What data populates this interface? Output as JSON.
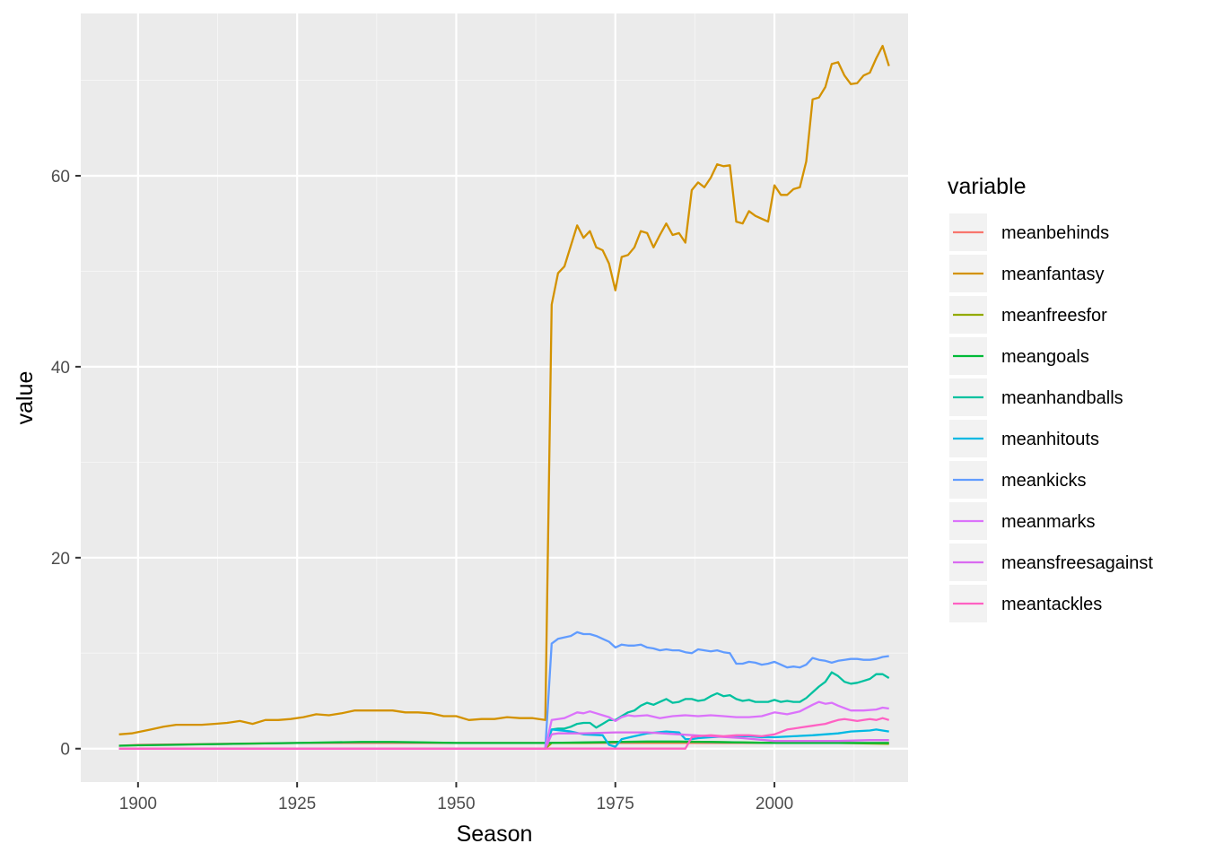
{
  "chart_data": {
    "type": "line",
    "xlabel": "Season",
    "ylabel": "value",
    "xlim": [
      1891,
      2021
    ],
    "ylim": [
      -3.5,
      77
    ],
    "x_ticks": [
      1900,
      1925,
      1950,
      1975,
      2000
    ],
    "y_ticks": [
      0,
      20,
      40,
      60
    ],
    "grid": true,
    "legend": {
      "title": "variable",
      "position": "right"
    },
    "series": [
      {
        "name": "meanbehinds",
        "color": "#F8766D",
        "x": [
          1897,
          1900,
          1925,
          1950,
          1964,
          1966,
          1975,
          1990,
          2000,
          2010,
          2018
        ],
        "y": [
          0.3,
          0.4,
          0.6,
          0.6,
          0.6,
          0.6,
          0.6,
          0.6,
          0.6,
          0.6,
          0.6
        ]
      },
      {
        "name": "meanfantasy",
        "color": "#D39200",
        "x": [
          1897,
          1899,
          1902,
          1904,
          1906,
          1908,
          1910,
          1912,
          1914,
          1916,
          1918,
          1920,
          1922,
          1924,
          1926,
          1928,
          1930,
          1932,
          1934,
          1936,
          1938,
          1940,
          1942,
          1944,
          1946,
          1948,
          1950,
          1952,
          1954,
          1956,
          1958,
          1960,
          1962,
          1964,
          1965,
          1966,
          1967,
          1969,
          1970,
          1971,
          1972,
          1973,
          1974,
          1975,
          1976,
          1977,
          1978,
          1979,
          1980,
          1981,
          1982,
          1983,
          1984,
          1985,
          1986,
          1987,
          1988,
          1989,
          1990,
          1991,
          1992,
          1993,
          1994,
          1995,
          1996,
          1997,
          1998,
          1999,
          2000,
          2001,
          2002,
          2003,
          2004,
          2005,
          2006,
          2007,
          2008,
          2009,
          2010,
          2011,
          2012,
          2013,
          2014,
          2015,
          2016,
          2017,
          2018
        ],
        "y": [
          1.5,
          1.6,
          2.0,
          2.3,
          2.5,
          2.5,
          2.5,
          2.6,
          2.7,
          2.9,
          2.6,
          3.0,
          3.0,
          3.1,
          3.3,
          3.6,
          3.5,
          3.7,
          4.0,
          4.0,
          4.0,
          4.0,
          3.8,
          3.8,
          3.7,
          3.4,
          3.4,
          3.0,
          3.1,
          3.1,
          3.3,
          3.2,
          3.2,
          3.0,
          46.5,
          49.8,
          50.5,
          54.8,
          53.5,
          54.2,
          52.5,
          52.2,
          50.8,
          48.0,
          51.5,
          51.7,
          52.5,
          54.2,
          54.0,
          52.5,
          53.8,
          55.0,
          53.8,
          54.0,
          53.0,
          58.5,
          59.3,
          58.8,
          59.8,
          61.2,
          61.0,
          61.1,
          55.2,
          55.0,
          56.3,
          55.8,
          55.5,
          55.2,
          59.0,
          58.0,
          58.0,
          58.6,
          58.8,
          61.5,
          68.0,
          68.2,
          69.3,
          71.7,
          71.9,
          70.5,
          69.6,
          69.7,
          70.5,
          70.8,
          72.3,
          73.6,
          71.5
        ]
      },
      {
        "name": "meanfreesfor",
        "color": "#93AA00",
        "x": [
          1897,
          1964,
          1965,
          1970,
          1975,
          1985,
          1990,
          2000,
          2010,
          2018
        ],
        "y": [
          0,
          0,
          0.6,
          0.6,
          0.7,
          0.7,
          0.7,
          0.6,
          0.6,
          0.5
        ]
      },
      {
        "name": "meangoals",
        "color": "#00BA38",
        "x": [
          1897,
          1900,
          1905,
          1910,
          1915,
          1920,
          1925,
          1930,
          1935,
          1940,
          1945,
          1950,
          1955,
          1960,
          1964,
          1970,
          1975,
          1980,
          1985,
          1990,
          1995,
          2000,
          2005,
          2010,
          2015,
          2018
        ],
        "y": [
          0.3,
          0.35,
          0.4,
          0.45,
          0.5,
          0.55,
          0.6,
          0.65,
          0.7,
          0.7,
          0.65,
          0.6,
          0.6,
          0.6,
          0.6,
          0.65,
          0.7,
          0.75,
          0.75,
          0.7,
          0.65,
          0.6,
          0.6,
          0.6,
          0.6,
          0.6
        ]
      },
      {
        "name": "meanhandballs",
        "color": "#00C19F",
        "x": [
          1897,
          1964,
          1965,
          1966,
          1967,
          1968,
          1969,
          1970,
          1971,
          1972,
          1973,
          1974,
          1975,
          1976,
          1977,
          1978,
          1979,
          1980,
          1981,
          1982,
          1983,
          1984,
          1985,
          1986,
          1987,
          1988,
          1989,
          1990,
          1991,
          1992,
          1993,
          1994,
          1995,
          1996,
          1997,
          1998,
          1999,
          2000,
          2001,
          2002,
          2003,
          2004,
          2005,
          2006,
          2007,
          2008,
          2009,
          2010,
          2011,
          2012,
          2013,
          2014,
          2015,
          2016,
          2017,
          2018
        ],
        "y": [
          0,
          0,
          2.0,
          2.1,
          2.1,
          2.3,
          2.6,
          2.7,
          2.7,
          2.2,
          2.6,
          3.0,
          3.0,
          3.4,
          3.8,
          4.0,
          4.5,
          4.8,
          4.6,
          4.9,
          5.2,
          4.8,
          4.9,
          5.2,
          5.2,
          5.0,
          5.1,
          5.5,
          5.8,
          5.5,
          5.6,
          5.2,
          5.0,
          5.1,
          4.9,
          4.9,
          4.9,
          5.1,
          4.9,
          5.0,
          4.9,
          4.9,
          5.3,
          5.9,
          6.5,
          7.0,
          8.0,
          7.6,
          7.0,
          6.8,
          6.9,
          7.1,
          7.3,
          7.8,
          7.8,
          7.4
        ]
      },
      {
        "name": "meanhitouts",
        "color": "#00B9E3",
        "x": [
          1897,
          1964,
          1965,
          1968,
          1970,
          1973,
          1974,
          1975,
          1976,
          1978,
          1980,
          1983,
          1985,
          1986,
          1987,
          1988,
          1990,
          1993,
          1996,
          1998,
          2000,
          2003,
          2006,
          2010,
          2012,
          2015,
          2016,
          2018
        ],
        "y": [
          0,
          0,
          2.0,
          1.8,
          1.5,
          1.4,
          0.4,
          0.2,
          1.0,
          1.3,
          1.6,
          1.8,
          1.7,
          1.0,
          1.0,
          1.1,
          1.2,
          1.3,
          1.3,
          1.2,
          1.2,
          1.3,
          1.4,
          1.6,
          1.8,
          1.9,
          2.0,
          1.8
        ]
      },
      {
        "name": "meankicks",
        "color": "#619CFF",
        "x": [
          1897,
          1964,
          1965,
          1966,
          1968,
          1969,
          1970,
          1971,
          1972,
          1973,
          1974,
          1975,
          1976,
          1977,
          1978,
          1979,
          1980,
          1981,
          1982,
          1983,
          1984,
          1985,
          1986,
          1987,
          1988,
          1989,
          1990,
          1991,
          1992,
          1993,
          1994,
          1995,
          1996,
          1997,
          1998,
          1999,
          2000,
          2001,
          2002,
          2003,
          2004,
          2005,
          2006,
          2007,
          2008,
          2009,
          2010,
          2011,
          2012,
          2013,
          2014,
          2015,
          2016,
          2017,
          2018
        ],
        "y": [
          0,
          0,
          11.0,
          11.5,
          11.8,
          12.2,
          12.0,
          12.0,
          11.8,
          11.5,
          11.2,
          10.6,
          10.9,
          10.8,
          10.8,
          10.9,
          10.6,
          10.5,
          10.3,
          10.4,
          10.3,
          10.3,
          10.1,
          10.0,
          10.4,
          10.3,
          10.2,
          10.3,
          10.1,
          10.0,
          8.9,
          8.9,
          9.1,
          9.0,
          8.8,
          8.9,
          9.1,
          8.8,
          8.5,
          8.6,
          8.5,
          8.8,
          9.5,
          9.3,
          9.2,
          9.0,
          9.2,
          9.3,
          9.4,
          9.4,
          9.3,
          9.3,
          9.4,
          9.6,
          9.7
        ]
      },
      {
        "name": "meanmarks",
        "color": "#DB72FB",
        "x": [
          1897,
          1964,
          1965,
          1966,
          1967,
          1968,
          1969,
          1970,
          1971,
          1972,
          1973,
          1974,
          1975,
          1976,
          1977,
          1978,
          1980,
          1982,
          1984,
          1986,
          1988,
          1990,
          1992,
          1994,
          1996,
          1998,
          2000,
          2002,
          2004,
          2006,
          2007,
          2008,
          2009,
          2010,
          2012,
          2014,
          2016,
          2017,
          2018
        ],
        "y": [
          0,
          0,
          3.0,
          3.1,
          3.2,
          3.5,
          3.8,
          3.7,
          3.9,
          3.7,
          3.5,
          3.3,
          2.9,
          3.3,
          3.5,
          3.4,
          3.5,
          3.2,
          3.4,
          3.5,
          3.4,
          3.5,
          3.4,
          3.3,
          3.3,
          3.4,
          3.8,
          3.6,
          3.9,
          4.6,
          4.9,
          4.7,
          4.8,
          4.5,
          4.0,
          4.0,
          4.1,
          4.3,
          4.2
        ]
      },
      {
        "name": "meansfreesagainst",
        "color": "#D96AF0",
        "x": [
          1897,
          1964,
          1965,
          1966,
          1970,
          1975,
          1980,
          1985,
          1990,
          1995,
          2000,
          2005,
          2010,
          2015,
          2018
        ],
        "y": [
          0,
          0,
          1.5,
          1.6,
          1.6,
          1.7,
          1.7,
          1.5,
          1.3,
          1.1,
          0.8,
          0.8,
          0.8,
          0.9,
          0.9
        ]
      },
      {
        "name": "meantackles",
        "color": "#FF61C3",
        "x": [
          1897,
          1986,
          1987,
          1988,
          1990,
          1992,
          1994,
          1996,
          1998,
          2000,
          2002,
          2003,
          2004,
          2006,
          2007,
          2008,
          2009,
          2010,
          2011,
          2012,
          2013,
          2014,
          2015,
          2016,
          2017,
          2018
        ],
        "y": [
          0,
          0,
          1.2,
          1.3,
          1.4,
          1.3,
          1.4,
          1.4,
          1.3,
          1.5,
          2.0,
          2.1,
          2.2,
          2.4,
          2.5,
          2.6,
          2.8,
          3.0,
          3.1,
          3.0,
          2.9,
          3.0,
          3.1,
          3.0,
          3.2,
          3.0
        ]
      }
    ]
  }
}
